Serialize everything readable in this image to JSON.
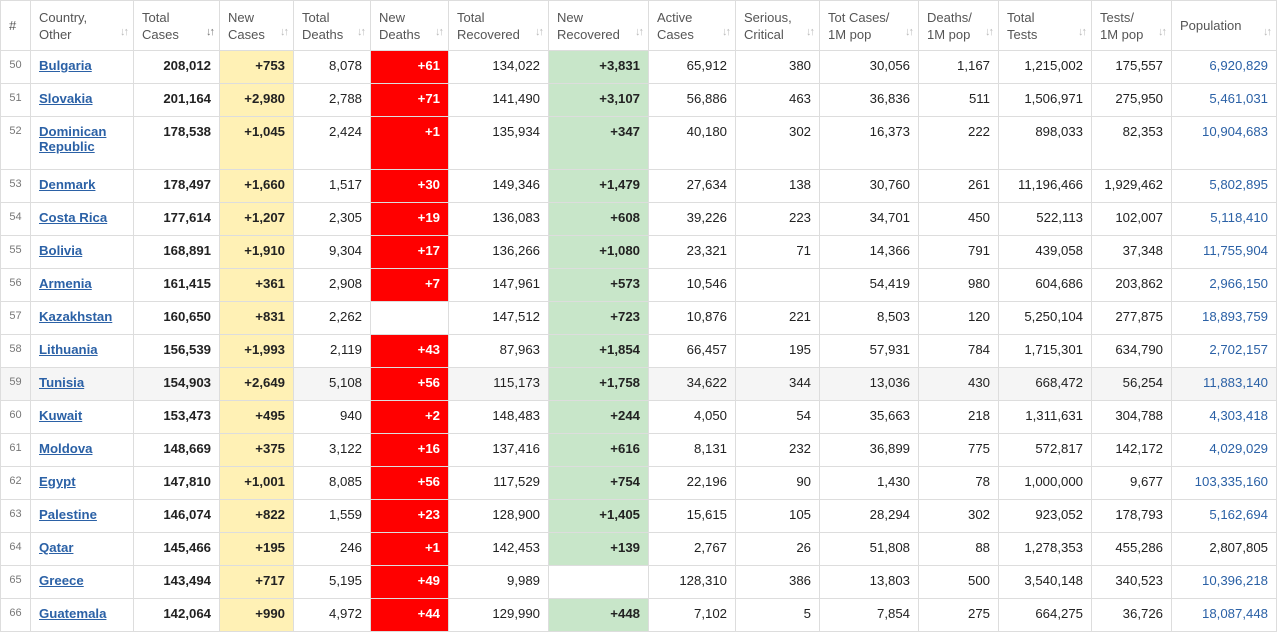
{
  "headers": [
    {
      "key": "idx",
      "lines": [
        "#"
      ]
    },
    {
      "key": "country",
      "lines": [
        "Country,",
        "Other"
      ]
    },
    {
      "key": "total_cases",
      "lines": [
        "Total",
        "Cases"
      ]
    },
    {
      "key": "new_cases",
      "lines": [
        "New",
        "Cases"
      ]
    },
    {
      "key": "total_deaths",
      "lines": [
        "Total",
        "Deaths"
      ]
    },
    {
      "key": "new_deaths",
      "lines": [
        "New",
        "Deaths"
      ]
    },
    {
      "key": "total_recovered",
      "lines": [
        "Total",
        "Recovered"
      ]
    },
    {
      "key": "new_recovered",
      "lines": [
        "New",
        "Recovered"
      ]
    },
    {
      "key": "active",
      "lines": [
        "Active",
        "Cases"
      ]
    },
    {
      "key": "serious",
      "lines": [
        "Serious,",
        "Critical"
      ]
    },
    {
      "key": "tot_1m",
      "lines": [
        "Tot Cases/",
        "1M pop"
      ]
    },
    {
      "key": "deaths_1m",
      "lines": [
        "Deaths/",
        "1M pop"
      ]
    },
    {
      "key": "total_tests",
      "lines": [
        "Total",
        "Tests"
      ]
    },
    {
      "key": "tests_1m",
      "lines": [
        "Tests/",
        "1M pop"
      ]
    },
    {
      "key": "population",
      "lines": [
        "Population"
      ]
    }
  ],
  "sort_icons": {
    "default": "↓↑",
    "active": "↓↑"
  },
  "rows": [
    {
      "idx": "50",
      "country": "Bulgaria",
      "total_cases": "208,012",
      "new_cases": "+753",
      "total_deaths": "8,078",
      "new_deaths": "+61",
      "total_recovered": "134,022",
      "new_recovered": "+3,831",
      "active": "65,912",
      "serious": "380",
      "tot_1m": "30,056",
      "deaths_1m": "1,167",
      "total_tests": "1,215,002",
      "tests_1m": "175,557",
      "population": "6,920,829"
    },
    {
      "idx": "51",
      "country": "Slovakia",
      "total_cases": "201,164",
      "new_cases": "+2,980",
      "total_deaths": "2,788",
      "new_deaths": "+71",
      "total_recovered": "141,490",
      "new_recovered": "+3,107",
      "active": "56,886",
      "serious": "463",
      "tot_1m": "36,836",
      "deaths_1m": "511",
      "total_tests": "1,506,971",
      "tests_1m": "275,950",
      "population": "5,461,031"
    },
    {
      "idx": "52",
      "country": "Dominican Republic",
      "total_cases": "178,538",
      "new_cases": "+1,045",
      "total_deaths": "2,424",
      "new_deaths": "+1",
      "total_recovered": "135,934",
      "new_recovered": "+347",
      "active": "40,180",
      "serious": "302",
      "tot_1m": "16,373",
      "deaths_1m": "222",
      "total_tests": "898,033",
      "tests_1m": "82,353",
      "population": "10,904,683",
      "tall": true
    },
    {
      "idx": "53",
      "country": "Denmark",
      "total_cases": "178,497",
      "new_cases": "+1,660",
      "total_deaths": "1,517",
      "new_deaths": "+30",
      "total_recovered": "149,346",
      "new_recovered": "+1,479",
      "active": "27,634",
      "serious": "138",
      "tot_1m": "30,760",
      "deaths_1m": "261",
      "total_tests": "11,196,466",
      "tests_1m": "1,929,462",
      "population": "5,802,895"
    },
    {
      "idx": "54",
      "country": "Costa Rica",
      "total_cases": "177,614",
      "new_cases": "+1,207",
      "total_deaths": "2,305",
      "new_deaths": "+19",
      "total_recovered": "136,083",
      "new_recovered": "+608",
      "active": "39,226",
      "serious": "223",
      "tot_1m": "34,701",
      "deaths_1m": "450",
      "total_tests": "522,113",
      "tests_1m": "102,007",
      "population": "5,118,410"
    },
    {
      "idx": "55",
      "country": "Bolivia",
      "total_cases": "168,891",
      "new_cases": "+1,910",
      "total_deaths": "9,304",
      "new_deaths": "+17",
      "total_recovered": "136,266",
      "new_recovered": "+1,080",
      "active": "23,321",
      "serious": "71",
      "tot_1m": "14,366",
      "deaths_1m": "791",
      "total_tests": "439,058",
      "tests_1m": "37,348",
      "population": "11,755,904"
    },
    {
      "idx": "56",
      "country": "Armenia",
      "total_cases": "161,415",
      "new_cases": "+361",
      "total_deaths": "2,908",
      "new_deaths": "+7",
      "total_recovered": "147,961",
      "new_recovered": "+573",
      "active": "10,546",
      "serious": "",
      "tot_1m": "54,419",
      "deaths_1m": "980",
      "total_tests": "604,686",
      "tests_1m": "203,862",
      "population": "2,966,150"
    },
    {
      "idx": "57",
      "country": "Kazakhstan",
      "total_cases": "160,650",
      "new_cases": "+831",
      "total_deaths": "2,262",
      "new_deaths": "",
      "total_recovered": "147,512",
      "new_recovered": "+723",
      "active": "10,876",
      "serious": "221",
      "tot_1m": "8,503",
      "deaths_1m": "120",
      "total_tests": "5,250,104",
      "tests_1m": "277,875",
      "population": "18,893,759"
    },
    {
      "idx": "58",
      "country": "Lithuania",
      "total_cases": "156,539",
      "new_cases": "+1,993",
      "total_deaths": "2,119",
      "new_deaths": "+43",
      "total_recovered": "87,963",
      "new_recovered": "+1,854",
      "active": "66,457",
      "serious": "195",
      "tot_1m": "57,931",
      "deaths_1m": "784",
      "total_tests": "1,715,301",
      "tests_1m": "634,790",
      "population": "2,702,157"
    },
    {
      "idx": "59",
      "country": "Tunisia",
      "total_cases": "154,903",
      "new_cases": "+2,649",
      "total_deaths": "5,108",
      "new_deaths": "+56",
      "total_recovered": "115,173",
      "new_recovered": "+1,758",
      "active": "34,622",
      "serious": "344",
      "tot_1m": "13,036",
      "deaths_1m": "430",
      "total_tests": "668,472",
      "tests_1m": "56,254",
      "population": "11,883,140",
      "highlight": true
    },
    {
      "idx": "60",
      "country": "Kuwait",
      "total_cases": "153,473",
      "new_cases": "+495",
      "total_deaths": "940",
      "new_deaths": "+2",
      "total_recovered": "148,483",
      "new_recovered": "+244",
      "active": "4,050",
      "serious": "54",
      "tot_1m": "35,663",
      "deaths_1m": "218",
      "total_tests": "1,311,631",
      "tests_1m": "304,788",
      "population": "4,303,418"
    },
    {
      "idx": "61",
      "country": "Moldova",
      "total_cases": "148,669",
      "new_cases": "+375",
      "total_deaths": "3,122",
      "new_deaths": "+16",
      "total_recovered": "137,416",
      "new_recovered": "+616",
      "active": "8,131",
      "serious": "232",
      "tot_1m": "36,899",
      "deaths_1m": "775",
      "total_tests": "572,817",
      "tests_1m": "142,172",
      "population": "4,029,029"
    },
    {
      "idx": "62",
      "country": "Egypt",
      "total_cases": "147,810",
      "new_cases": "+1,001",
      "total_deaths": "8,085",
      "new_deaths": "+56",
      "total_recovered": "117,529",
      "new_recovered": "+754",
      "active": "22,196",
      "serious": "90",
      "tot_1m": "1,430",
      "deaths_1m": "78",
      "total_tests": "1,000,000",
      "tests_1m": "9,677",
      "population": "103,335,160"
    },
    {
      "idx": "63",
      "country": "Palestine",
      "total_cases": "146,074",
      "new_cases": "+822",
      "total_deaths": "1,559",
      "new_deaths": "+23",
      "total_recovered": "128,900",
      "new_recovered": "+1,405",
      "active": "15,615",
      "serious": "105",
      "tot_1m": "28,294",
      "deaths_1m": "302",
      "total_tests": "923,052",
      "tests_1m": "178,793",
      "population": "5,162,694"
    },
    {
      "idx": "64",
      "country": "Qatar",
      "total_cases": "145,466",
      "new_cases": "+195",
      "total_deaths": "246",
      "new_deaths": "+1",
      "total_recovered": "142,453",
      "new_recovered": "+139",
      "active": "2,767",
      "serious": "26",
      "tot_1m": "51,808",
      "deaths_1m": "88",
      "total_tests": "1,278,353",
      "tests_1m": "455,286",
      "population": "2,807,805",
      "pop_plain": true
    },
    {
      "idx": "65",
      "country": "Greece",
      "total_cases": "143,494",
      "new_cases": "+717",
      "total_deaths": "5,195",
      "new_deaths": "+49",
      "total_recovered": "9,989",
      "new_recovered": "",
      "active": "128,310",
      "serious": "386",
      "tot_1m": "13,803",
      "deaths_1m": "500",
      "total_tests": "3,540,148",
      "tests_1m": "340,523",
      "population": "10,396,218"
    },
    {
      "idx": "66",
      "country": "Guatemala",
      "total_cases": "142,064",
      "new_cases": "+990",
      "total_deaths": "4,972",
      "new_deaths": "+44",
      "total_recovered": "129,990",
      "new_recovered": "+448",
      "active": "7,102",
      "serious": "5",
      "tot_1m": "7,854",
      "deaths_1m": "275",
      "total_tests": "664,275",
      "tests_1m": "36,726",
      "population": "18,087,448"
    }
  ],
  "colors": {
    "new_cases_bg": "#fff1b5",
    "new_deaths_bg": "#ff0000",
    "new_recovered_bg": "#c8e6c9",
    "link": "#2b61a6"
  }
}
